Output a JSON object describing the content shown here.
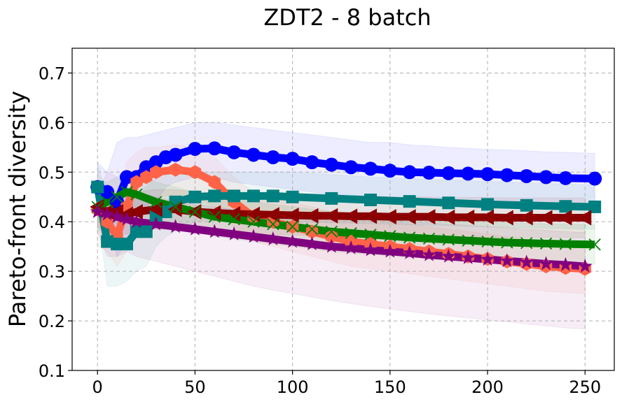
{
  "chart_data": {
    "type": "line",
    "title": "ZDT2 - 8 batch",
    "xlabel": "",
    "ylabel": "Pareto-front diversity",
    "xlim": [
      -13,
      265
    ],
    "ylim": [
      0.1,
      0.75
    ],
    "xticks": [
      0,
      50,
      100,
      150,
      200,
      250
    ],
    "yticks": [
      0.1,
      0.2,
      0.3,
      0.4,
      0.5,
      0.6,
      0.7
    ],
    "xtick_labels": [
      "0",
      "50",
      "100",
      "150",
      "200",
      "250"
    ],
    "ytick_labels": [
      "0.1",
      "0.2",
      "0.3",
      "0.4",
      "0.5",
      "0.6",
      "0.7"
    ],
    "grid": true,
    "series": [
      {
        "name": "blue-circle",
        "color": "#0000ff",
        "marker": "circle",
        "x": [
          0,
          5,
          10,
          15,
          20,
          25,
          30,
          35,
          40,
          50,
          60,
          70,
          80,
          90,
          100,
          110,
          120,
          130,
          140,
          150,
          160,
          170,
          180,
          190,
          200,
          210,
          220,
          230,
          240,
          255
        ],
        "y": [
          0.47,
          0.46,
          0.44,
          0.49,
          0.49,
          0.51,
          0.52,
          0.53,
          0.535,
          0.547,
          0.548,
          0.54,
          0.535,
          0.53,
          0.527,
          0.52,
          0.515,
          0.51,
          0.507,
          0.503,
          0.5,
          0.499,
          0.498,
          0.497,
          0.496,
          0.494,
          0.492,
          0.49,
          0.488,
          0.487
        ],
        "band_upper": [
          0.52,
          0.5,
          0.56,
          0.57,
          0.57,
          0.575,
          0.58,
          0.585,
          0.59,
          0.6,
          0.6,
          0.595,
          0.59,
          0.585,
          0.58,
          0.575,
          0.57,
          0.565,
          0.56,
          0.56,
          0.555,
          0.553,
          0.55,
          0.548,
          0.546,
          0.545,
          0.543,
          0.541,
          0.54,
          0.538
        ],
        "band_lower": [
          0.42,
          0.4,
          0.33,
          0.36,
          0.39,
          0.42,
          0.44,
          0.47,
          0.48,
          0.49,
          0.49,
          0.48,
          0.475,
          0.47,
          0.465,
          0.46,
          0.455,
          0.455,
          0.45,
          0.45,
          0.447,
          0.445,
          0.443,
          0.441,
          0.44,
          0.438,
          0.437,
          0.436,
          0.435,
          0.434
        ]
      },
      {
        "name": "tomato-hexagon",
        "color": "#ff6347",
        "marker": "hexagon",
        "x": [
          0,
          5,
          10,
          15,
          20,
          25,
          30,
          40,
          50,
          60,
          70,
          80,
          90,
          100,
          110,
          120,
          130,
          140,
          150,
          160,
          170,
          180,
          190,
          200,
          210,
          220,
          230,
          240,
          250
        ],
        "y": [
          0.425,
          0.4,
          0.37,
          0.43,
          0.48,
          0.49,
          0.5,
          0.505,
          0.5,
          0.48,
          0.44,
          0.41,
          0.4,
          0.39,
          0.38,
          0.37,
          0.36,
          0.355,
          0.35,
          0.345,
          0.34,
          0.335,
          0.33,
          0.325,
          0.32,
          0.315,
          0.31,
          0.307,
          0.305
        ],
        "band_upper": [
          0.5,
          0.46,
          0.43,
          0.52,
          0.54,
          0.55,
          0.55,
          0.555,
          0.55,
          0.53,
          0.49,
          0.46,
          0.45,
          0.44,
          0.43,
          0.42,
          0.41,
          0.405,
          0.4,
          0.395,
          0.39,
          0.385,
          0.38,
          0.375,
          0.37,
          0.365,
          0.36,
          0.357,
          0.355
        ],
        "band_lower": [
          0.35,
          0.34,
          0.31,
          0.34,
          0.42,
          0.43,
          0.45,
          0.455,
          0.45,
          0.43,
          0.39,
          0.36,
          0.35,
          0.34,
          0.33,
          0.32,
          0.31,
          0.305,
          0.3,
          0.295,
          0.29,
          0.285,
          0.28,
          0.275,
          0.27,
          0.265,
          0.26,
          0.257,
          0.255
        ]
      },
      {
        "name": "teal-square",
        "color": "#008080",
        "marker": "square",
        "x": [
          0,
          5,
          10,
          15,
          20,
          25,
          30,
          35,
          40,
          50,
          60,
          70,
          80,
          90,
          100,
          120,
          140,
          160,
          180,
          200,
          220,
          240,
          255
        ],
        "y": [
          0.47,
          0.36,
          0.355,
          0.355,
          0.38,
          0.38,
          0.41,
          0.42,
          0.44,
          0.45,
          0.452,
          0.452,
          0.452,
          0.452,
          0.45,
          0.447,
          0.444,
          0.441,
          0.438,
          0.435,
          0.433,
          0.431,
          0.43
        ],
        "band_upper": [
          0.52,
          0.45,
          0.45,
          0.44,
          0.46,
          0.47,
          0.49,
          0.5,
          0.5,
          0.5,
          0.5,
          0.5,
          0.5,
          0.5,
          0.5,
          0.495,
          0.49,
          0.487,
          0.484,
          0.481,
          0.478,
          0.476,
          0.474
        ],
        "band_lower": [
          0.42,
          0.27,
          0.27,
          0.28,
          0.3,
          0.31,
          0.35,
          0.37,
          0.38,
          0.4,
          0.405,
          0.405,
          0.405,
          0.405,
          0.4,
          0.398,
          0.396,
          0.394,
          0.392,
          0.39,
          0.388,
          0.386,
          0.385
        ]
      },
      {
        "name": "darkred-triangle",
        "color": "#8b0000",
        "marker": "triangle-left",
        "x": [
          0,
          5,
          10,
          15,
          20,
          30,
          40,
          50,
          60,
          70,
          80,
          90,
          100,
          110,
          120,
          130,
          140,
          150,
          160,
          170,
          180,
          190,
          200,
          210,
          220,
          230,
          240,
          250
        ],
        "y": [
          0.43,
          0.42,
          0.42,
          0.415,
          0.42,
          0.425,
          0.425,
          0.42,
          0.418,
          0.416,
          0.415,
          0.414,
          0.413,
          0.412,
          0.412,
          0.411,
          0.411,
          0.41,
          0.41,
          0.41,
          0.409,
          0.409,
          0.409,
          0.408,
          0.408,
          0.408,
          0.408,
          0.408
        ],
        "band_upper": [
          0.47,
          0.46,
          0.46,
          0.455,
          0.46,
          0.465,
          0.465,
          0.46,
          0.458,
          0.456,
          0.455,
          0.454,
          0.453,
          0.452,
          0.452,
          0.451,
          0.451,
          0.45,
          0.45,
          0.45,
          0.449,
          0.449,
          0.449,
          0.448,
          0.448,
          0.448,
          0.448,
          0.448
        ],
        "band_lower": [
          0.39,
          0.38,
          0.38,
          0.375,
          0.38,
          0.385,
          0.385,
          0.38,
          0.378,
          0.376,
          0.375,
          0.374,
          0.373,
          0.372,
          0.372,
          0.371,
          0.371,
          0.37,
          0.37,
          0.37,
          0.369,
          0.369,
          0.369,
          0.368,
          0.368,
          0.368,
          0.368,
          0.368
        ]
      },
      {
        "name": "green-x",
        "color": "#008000",
        "marker": "x",
        "x": [
          0,
          5,
          10,
          15,
          20,
          30,
          40,
          50,
          60,
          70,
          80,
          90,
          100,
          110,
          120,
          130,
          140,
          150,
          160,
          170,
          180,
          190,
          200,
          210,
          220,
          230,
          240,
          255
        ],
        "y": [
          0.43,
          0.44,
          0.45,
          0.46,
          0.455,
          0.44,
          0.43,
          0.42,
          0.41,
          0.405,
          0.4,
          0.395,
          0.39,
          0.385,
          0.38,
          0.377,
          0.374,
          0.371,
          0.368,
          0.366,
          0.364,
          0.362,
          0.36,
          0.358,
          0.357,
          0.356,
          0.355,
          0.354
        ],
        "band_upper": [
          0.48,
          0.48,
          0.49,
          0.5,
          0.495,
          0.48,
          0.47,
          0.46,
          0.45,
          0.445,
          0.44,
          0.435,
          0.43,
          0.425,
          0.42,
          0.417,
          0.414,
          0.411,
          0.408,
          0.406,
          0.404,
          0.402,
          0.4,
          0.398,
          0.397,
          0.396,
          0.395,
          0.394
        ],
        "band_lower": [
          0.38,
          0.39,
          0.4,
          0.42,
          0.415,
          0.4,
          0.39,
          0.38,
          0.37,
          0.365,
          0.36,
          0.355,
          0.35,
          0.345,
          0.34,
          0.337,
          0.334,
          0.331,
          0.328,
          0.326,
          0.324,
          0.322,
          0.32,
          0.318,
          0.317,
          0.316,
          0.315,
          0.314
        ]
      },
      {
        "name": "purple-star",
        "color": "#800080",
        "marker": "star",
        "x": [
          0,
          5,
          10,
          15,
          20,
          30,
          40,
          50,
          60,
          70,
          80,
          90,
          100,
          110,
          120,
          130,
          140,
          150,
          160,
          170,
          180,
          190,
          200,
          210,
          220,
          230,
          240,
          250
        ],
        "y": [
          0.42,
          0.415,
          0.41,
          0.405,
          0.4,
          0.395,
          0.39,
          0.385,
          0.38,
          0.375,
          0.37,
          0.365,
          0.36,
          0.355,
          0.35,
          0.347,
          0.343,
          0.34,
          0.337,
          0.333,
          0.33,
          0.327,
          0.324,
          0.321,
          0.318,
          0.315,
          0.313,
          0.31
        ],
        "band_upper": [
          0.46,
          0.5,
          0.49,
          0.47,
          0.46,
          0.45,
          0.44,
          0.435,
          0.43,
          0.425,
          0.42,
          0.418,
          0.415,
          0.412,
          0.41,
          0.408,
          0.405,
          0.403,
          0.4,
          0.398,
          0.395,
          0.393,
          0.39,
          0.388,
          0.385,
          0.383,
          0.38,
          0.378
        ],
        "band_lower": [
          0.38,
          0.33,
          0.33,
          0.34,
          0.33,
          0.32,
          0.31,
          0.3,
          0.29,
          0.28,
          0.27,
          0.262,
          0.255,
          0.248,
          0.241,
          0.235,
          0.229,
          0.224,
          0.219,
          0.214,
          0.21,
          0.206,
          0.202,
          0.198,
          0.194,
          0.19,
          0.186,
          0.183
        ]
      }
    ]
  }
}
